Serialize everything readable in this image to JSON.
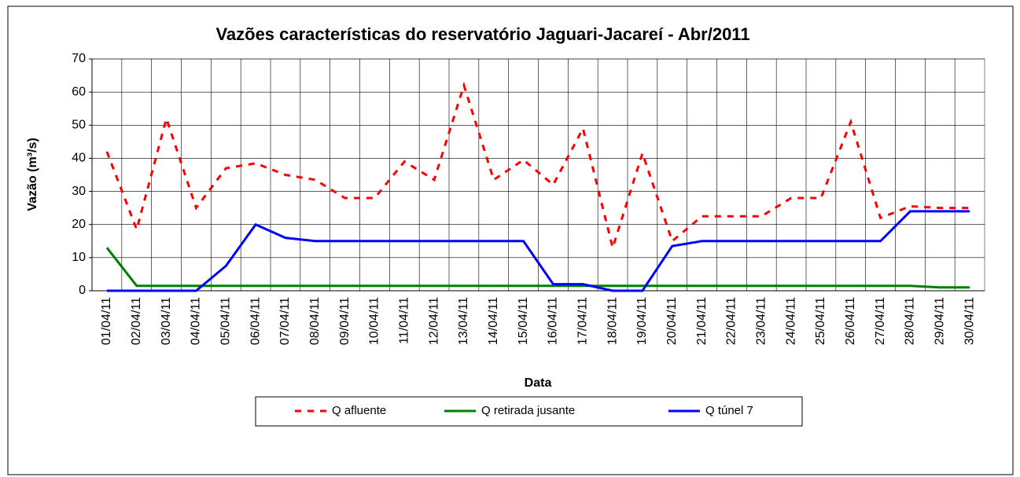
{
  "chart_data": {
    "type": "line",
    "title": "Vazões características do reservatório Jaguari-Jacareí - Abr/2011",
    "y_label": "Vazão (m³/s)",
    "x_label": "Data",
    "categories": [
      "01/04/11",
      "02/04/11",
      "03/04/11",
      "04/04/11",
      "05/04/11",
      "06/04/11",
      "07/04/11",
      "08/04/11",
      "09/04/11",
      "10/04/11",
      "11/04/11",
      "12/04/11",
      "13/04/11",
      "14/04/11",
      "15/04/11",
      "16/04/11",
      "17/04/11",
      "18/04/11",
      "19/04/11",
      "20/04/11",
      "21/04/11",
      "22/04/11",
      "23/04/11",
      "24/04/11",
      "25/04/11",
      "26/04/11",
      "27/04/11",
      "28/04/11",
      "29/04/11",
      "30/04/11"
    ],
    "series": [
      {
        "name": "Q afluente",
        "color": "#ff0000",
        "dashed": true,
        "values": [
          42,
          18.5,
          52,
          25,
          37,
          38.5,
          35,
          33.5,
          28,
          28,
          39,
          33.5,
          62,
          33.5,
          39.5,
          32,
          49,
          13,
          41.5,
          15,
          22.5,
          22.5,
          22.5,
          28,
          28,
          51,
          22,
          25.5,
          25,
          25
        ]
      },
      {
        "name": "Q retirada jusante",
        "color": "#008000",
        "values": [
          13,
          1.5,
          1.5,
          1.5,
          1.5,
          1.5,
          1.5,
          1.5,
          1.5,
          1.5,
          1.5,
          1.5,
          1.5,
          1.5,
          1.5,
          1.5,
          1.5,
          1.5,
          1.5,
          1.5,
          1.5,
          1.5,
          1.5,
          1.5,
          1.5,
          1.5,
          1.5,
          1.5,
          1,
          1
        ]
      },
      {
        "name": "Q túnel 7",
        "color": "#0000ff",
        "values": [
          0,
          0,
          0,
          0,
          7.5,
          20,
          16,
          15,
          15,
          15,
          15,
          15,
          15,
          15,
          15,
          2,
          2,
          0,
          0,
          13.5,
          15,
          15,
          15,
          15,
          15,
          15,
          15,
          24,
          24,
          24
        ]
      }
    ],
    "ylim": [
      0,
      70
    ],
    "yticks": [
      0,
      10,
      20,
      30,
      40,
      50,
      60,
      70
    ],
    "grid": true
  }
}
